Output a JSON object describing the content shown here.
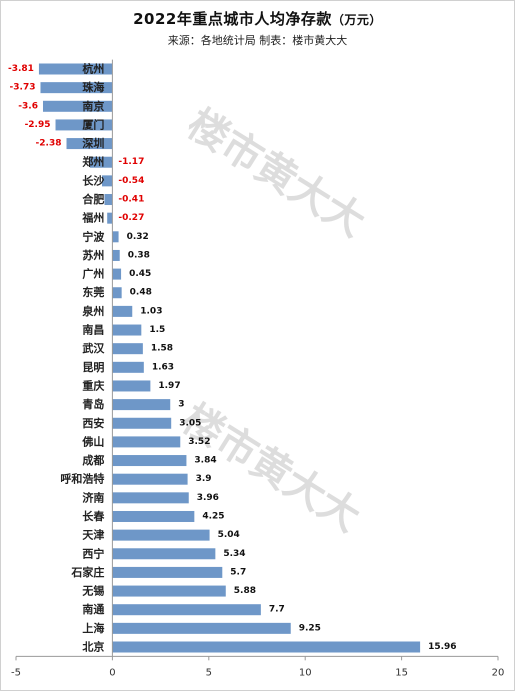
{
  "title": "2022年重点城市人均净存款",
  "unit": "（万元）",
  "subtitle": "来源：各地统计局  制表：楼市黄大大",
  "watermark": "楼市黄大大",
  "colors": {
    "bar": "#6e97c8",
    "negative_label": "#e00000"
  },
  "chart_data": {
    "type": "bar",
    "orientation": "horizontal",
    "categories": [
      "杭州",
      "珠海",
      "南京",
      "厦门",
      "深圳",
      "郑州",
      "长沙",
      "合肥",
      "福州",
      "宁波",
      "苏州",
      "广州",
      "东莞",
      "泉州",
      "南昌",
      "武汉",
      "昆明",
      "重庆",
      "青岛",
      "西安",
      "佛山",
      "成都",
      "呼和浩特",
      "济南",
      "长春",
      "天津",
      "西宁",
      "石家庄",
      "无锡",
      "南通",
      "上海",
      "北京"
    ],
    "values": [
      -3.81,
      -3.73,
      -3.6,
      -2.95,
      -2.38,
      -1.17,
      -0.54,
      -0.41,
      -0.27,
      0.32,
      0.38,
      0.45,
      0.48,
      1.03,
      1.5,
      1.58,
      1.63,
      1.97,
      3,
      3.05,
      3.52,
      3.84,
      3.9,
      3.96,
      4.25,
      5.04,
      5.34,
      5.7,
      5.88,
      7.7,
      9.25,
      15.96
    ],
    "value_labels": [
      "-3.81",
      "-3.73",
      "-3.6",
      "-2.95",
      "-2.38",
      "-1.17",
      "-0.54",
      "-0.41",
      "-0.27",
      "0.32",
      "0.38",
      "0.45",
      "0.48",
      "1.03",
      "1.5",
      "1.58",
      "1.63",
      "1.97",
      "3",
      "3.05",
      "3.52",
      "3.84",
      "3.9",
      "3.96",
      "4.25",
      "5.04",
      "5.34",
      "5.7",
      "5.88",
      "7.7",
      "9.25",
      "15.96"
    ],
    "xlim": [
      -5,
      20
    ],
    "xticks": [
      -5,
      0,
      5,
      10,
      15,
      20
    ],
    "xtick_labels": [
      "-5",
      "0",
      "5",
      "10",
      "15",
      "20"
    ],
    "grid": false,
    "legend": false
  }
}
